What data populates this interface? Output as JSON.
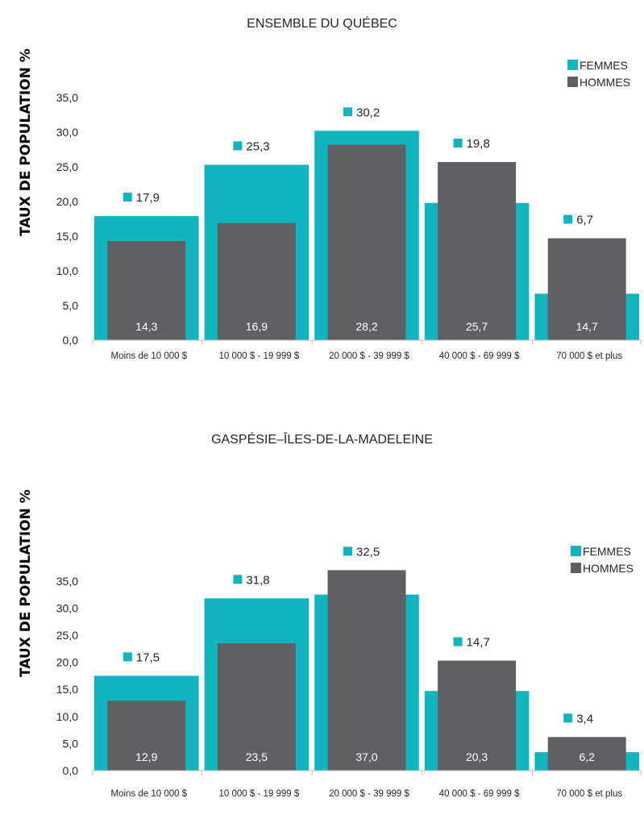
{
  "colors": {
    "femmes": "#11B5BF",
    "hommes": "#606062",
    "axis": "#BFBFBF",
    "text": "#262626"
  },
  "chart_data": [
    {
      "type": "bar",
      "title": "ENSEMBLE DU QUÉBEC",
      "ylabel": "TAUX DE POPULATION %",
      "xlabel": "",
      "ylim": [
        0,
        35
      ],
      "yticks": [
        "0,0",
        "5,0",
        "10,0",
        "15,0",
        "20,0",
        "25,0",
        "30,0",
        "35,0"
      ],
      "legend_position": "top-right",
      "grid": false,
      "categories": [
        "Moins de 10 000 $",
        "10 000 $ - 19 999 $",
        "20 000 $ - 39 999 $",
        "40 000 $ - 69 999 $",
        "70 000 $ et plus"
      ],
      "series": [
        {
          "name": "FEMMES",
          "values": [
            17.9,
            25.3,
            30.2,
            19.8,
            6.7
          ],
          "labels": [
            "17,9",
            "25,3",
            "30,2",
            "19,8",
            "6,7"
          ]
        },
        {
          "name": "HOMMES",
          "values": [
            14.3,
            16.9,
            28.2,
            25.7,
            14.7
          ],
          "labels": [
            "14,3",
            "16,9",
            "28,2",
            "25,7",
            "14,7"
          ]
        }
      ]
    },
    {
      "type": "bar",
      "title": "GASPÉSIE–ÎLES-DE-LA-MADELEINE",
      "ylabel": "TAUX DE POPULATION %",
      "xlabel": "",
      "ylim": [
        0,
        35
      ],
      "yticks": [
        "0,0",
        "5,0",
        "10,0",
        "15,0",
        "20,0",
        "25,0",
        "30,0",
        "35,0"
      ],
      "legend_position": "right",
      "grid": false,
      "categories": [
        "Moins de 10 000 $",
        "10 000 $ - 19 999 $",
        "20 000 $ - 39 999 $",
        "40 000 $ - 69 999 $",
        "70 000 $ et plus"
      ],
      "series": [
        {
          "name": "FEMMES",
          "values": [
            17.5,
            31.8,
            32.5,
            14.7,
            3.4
          ],
          "labels": [
            "17,5",
            "31,8",
            "32,5",
            "14,7",
            "3,4"
          ]
        },
        {
          "name": "HOMMES",
          "values": [
            12.9,
            23.5,
            37.0,
            20.3,
            6.2
          ],
          "labels": [
            "12,9",
            "23,5",
            "37,0",
            "20,3",
            "6,2"
          ]
        }
      ]
    }
  ]
}
